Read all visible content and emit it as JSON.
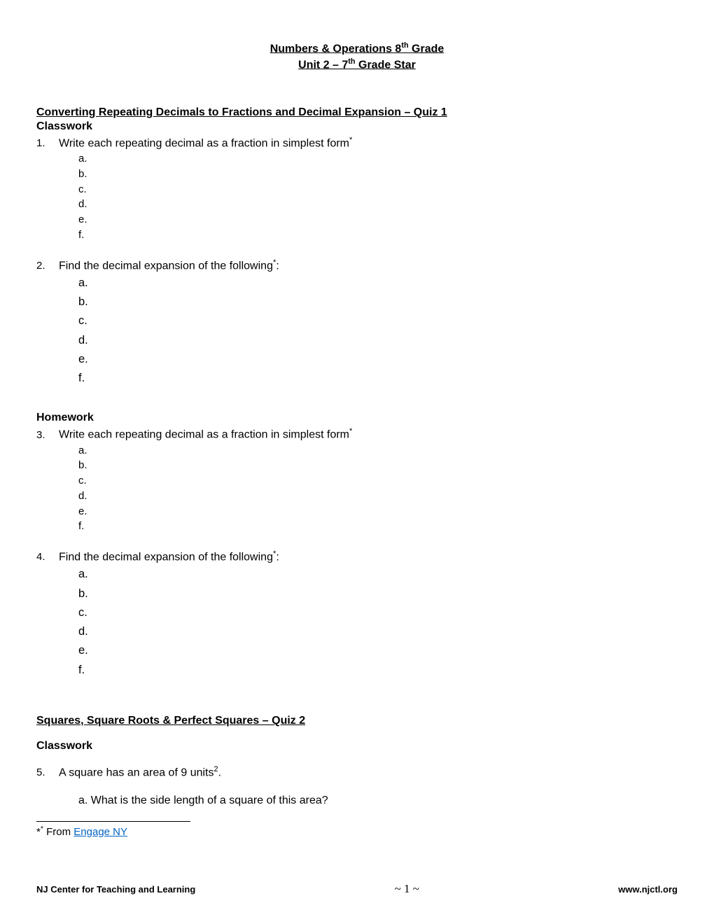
{
  "header": {
    "line1_a": "Numbers & Operations 8",
    "line1_sup": "th",
    "line1_b": " Grade ",
    "line2_a": "Unit 2 – 7",
    "line2_sup": "th",
    "line2_b": " Grade Star"
  },
  "section1": {
    "title": "Converting Repeating Decimals to Fractions and Decimal Expansion – Quiz 1",
    "classwork_label": "Classwork",
    "homework_label": "Homework"
  },
  "questions": {
    "q1": {
      "num": "1.",
      "text": "Write each repeating decimal as a fraction in simplest form",
      "star": "*"
    },
    "q2": {
      "num": "2.",
      "text": "Find the decimal expansion of the following",
      "star": "*",
      "colon": ":"
    },
    "q3": {
      "num": "3.",
      "text": "Write each repeating decimal as a fraction in simplest form",
      "star": "*"
    },
    "q4": {
      "num": "4.",
      "text": "Find the decimal expansion of the following",
      "star": "*",
      "colon": ":"
    },
    "q5": {
      "num": "5.",
      "text_a": "A square has an area of 9 units",
      "sup": "2",
      "text_b": ".",
      "sub_a": "a.   What is the side length of a square of this area?"
    }
  },
  "alpha": {
    "items": [
      "a.",
      "b.",
      "c.",
      "d.",
      "e.",
      "f."
    ]
  },
  "section2": {
    "title": "Squares, Square Roots & Perfect Squares – Quiz 2",
    "classwork_label": "Classwork"
  },
  "footnote": {
    "prefix": "*",
    "star": "*",
    "from": " From ",
    "link_text": "Engage NY"
  },
  "footer": {
    "left": "NJ Center for Teaching and Learning",
    "center_pre": "~ ",
    "page": "1",
    "center_post": " ~",
    "right": "www.njctl.org"
  }
}
